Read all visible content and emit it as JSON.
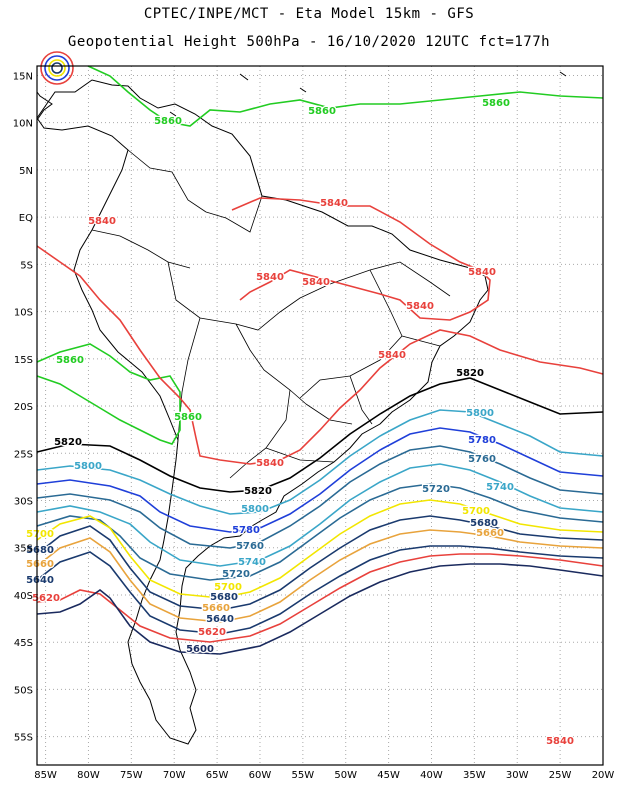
{
  "header": {
    "line1": "CPTEC/INPE/MCT  -   Eta Model 15km  -  GFS",
    "line2": "Geopotential Height 500hPa  -  16/10/2020 12UTC fct=177h"
  },
  "map": {
    "variable": "Geopotential Height 500hPa",
    "lon_range": [
      -86,
      -20
    ],
    "lat_range": [
      -58,
      16
    ],
    "lon_labels": [
      "85W",
      "80W",
      "75W",
      "70W",
      "65W",
      "60W",
      "55W",
      "50W",
      "45W",
      "40W",
      "35W",
      "30W",
      "25W",
      "20W"
    ],
    "lat_labels": [
      "15N",
      "10N",
      "5N",
      "EQ",
      "5S",
      "10S",
      "15S",
      "20S",
      "25S",
      "30S",
      "35S",
      "40S",
      "45S",
      "50S",
      "55S"
    ],
    "contour_labels": [
      {
        "text": "5860",
        "color": "#22cc22"
      },
      {
        "text": "5860",
        "color": "#22cc22"
      },
      {
        "text": "5860",
        "color": "#22cc22"
      },
      {
        "text": "5860",
        "color": "#22cc22"
      },
      {
        "text": "5860",
        "color": "#22cc22"
      },
      {
        "text": "5840",
        "color": "#e8413c"
      },
      {
        "text": "5840",
        "color": "#e8413c"
      },
      {
        "text": "5840",
        "color": "#e8413c"
      },
      {
        "text": "5840",
        "color": "#e8413c"
      },
      {
        "text": "5840",
        "color": "#e8413c"
      },
      {
        "text": "5840",
        "color": "#e8413c"
      },
      {
        "text": "5840",
        "color": "#e8413c"
      },
      {
        "text": "5840",
        "color": "#e8413c"
      },
      {
        "text": "5840",
        "color": "#e8413c"
      },
      {
        "text": "5820",
        "color": "#000000"
      },
      {
        "text": "5820",
        "color": "#000000"
      },
      {
        "text": "5820",
        "color": "#000000"
      },
      {
        "text": "5800",
        "color": "#3aa6c8"
      },
      {
        "text": "5800",
        "color": "#3aa6c8"
      },
      {
        "text": "5800",
        "color": "#3aa6c8"
      },
      {
        "text": "5780",
        "color": "#1f3fd9"
      },
      {
        "text": "5780",
        "color": "#1f3fd9"
      },
      {
        "text": "5760",
        "color": "#2a6a94"
      },
      {
        "text": "5760",
        "color": "#2a6a94"
      },
      {
        "text": "5740",
        "color": "#3aa6c8"
      },
      {
        "text": "5740",
        "color": "#3aa6c8"
      },
      {
        "text": "5720",
        "color": "#2a6a94"
      },
      {
        "text": "5720",
        "color": "#2a6a94"
      },
      {
        "text": "5700",
        "color": "#f2e600"
      },
      {
        "text": "5700",
        "color": "#f2e600"
      },
      {
        "text": "5700",
        "color": "#f2e600"
      },
      {
        "text": "5680",
        "color": "#1a3a6e"
      },
      {
        "text": "5680",
        "color": "#1a3a6e"
      },
      {
        "text": "5680",
        "color": "#1a3a6e"
      },
      {
        "text": "5660",
        "color": "#e8a33c"
      },
      {
        "text": "5660",
        "color": "#e8a33c"
      },
      {
        "text": "5660",
        "color": "#e8a33c"
      },
      {
        "text": "5640",
        "color": "#1a3a6e"
      },
      {
        "text": "5640",
        "color": "#1a3a6e"
      },
      {
        "text": "5620",
        "color": "#e8413c"
      },
      {
        "text": "5620",
        "color": "#e8413c"
      },
      {
        "text": "5600",
        "color": "#1a2a5e"
      }
    ],
    "colors": {
      "c5860": "#22cc22",
      "c5840": "#e8413c",
      "c5820": "#000000",
      "c5800": "#3aa6c8",
      "c5780": "#1f3fd9",
      "c5760": "#2a6a94",
      "c5740": "#3aa6c8",
      "c5720": "#2a6a94",
      "c5700": "#f2e600",
      "c5680": "#1a3a6e",
      "c5660": "#e8a33c",
      "c5640": "#1a3a6e",
      "c5620": "#e8413c",
      "c5600": "#1a2a5e"
    }
  }
}
